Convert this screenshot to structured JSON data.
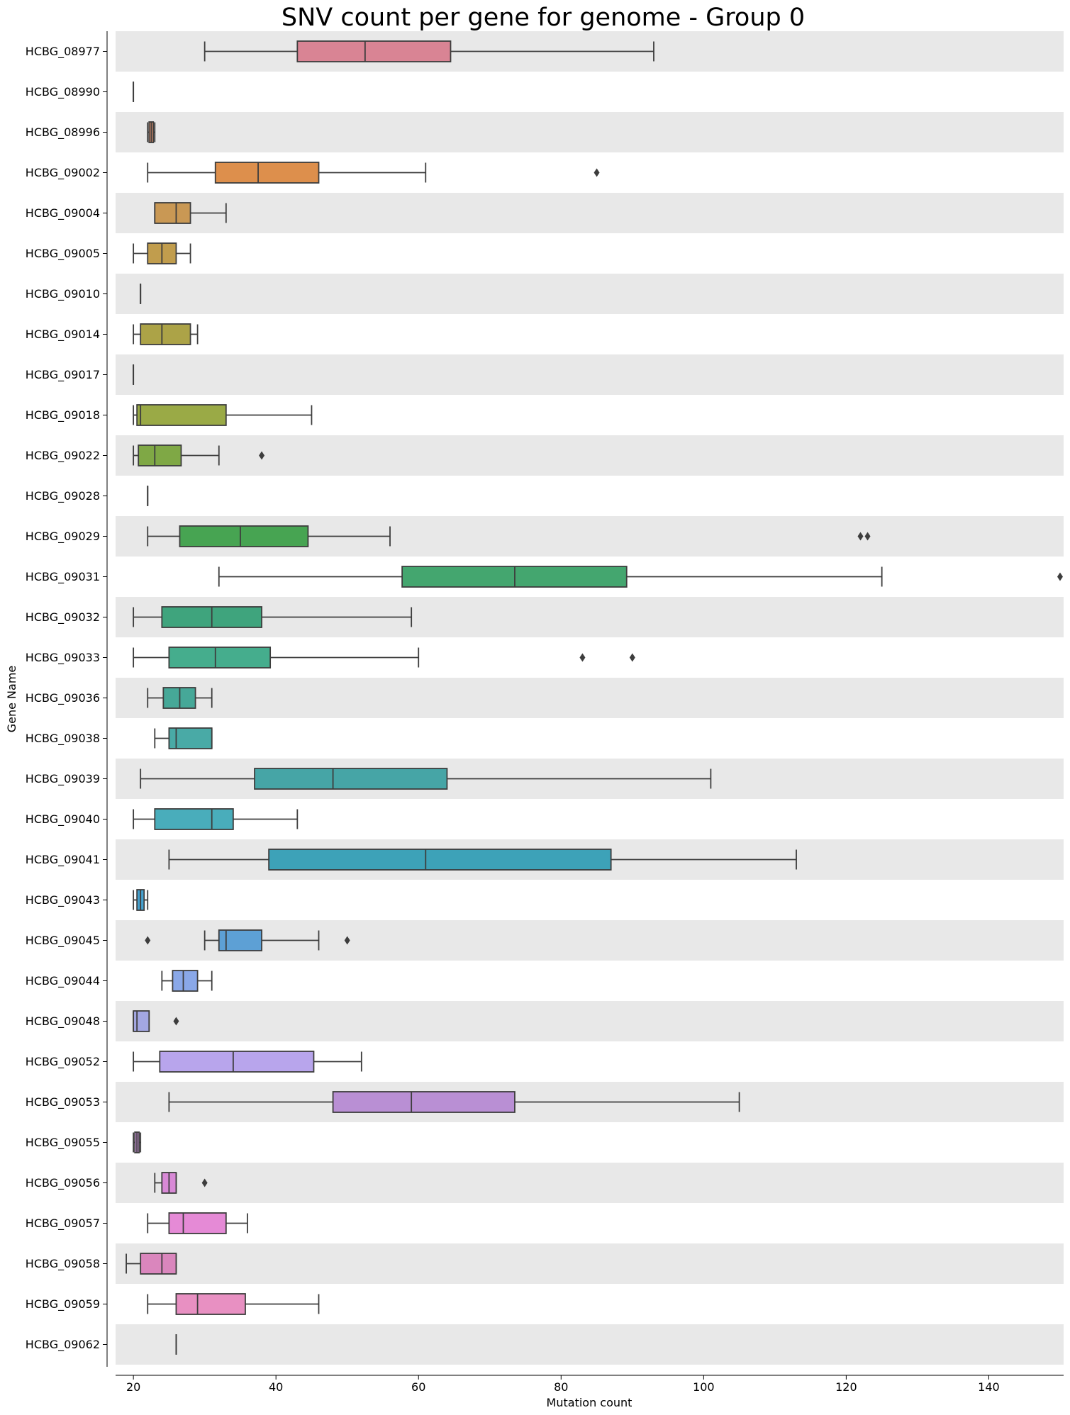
{
  "chart_data": {
    "type": "box",
    "orientation": "horizontal",
    "title": "SNV count per gene for genome - Group 0",
    "xlabel": "Mutation count",
    "ylabel": "Gene Name",
    "xlim": [
      17.5,
      150.5
    ],
    "xticks": [
      20,
      40,
      60,
      80,
      100,
      120,
      140
    ],
    "grid": false,
    "band_color": "#e8e8e8",
    "categories": [
      {
        "name": "HCBG_08977",
        "whisker_low": 30,
        "q1": 43,
        "median": 52.5,
        "q3": 64.5,
        "whisker_high": 93,
        "outliers": [],
        "color": "#d98494"
      },
      {
        "name": "HCBG_08990",
        "whisker_low": 20,
        "q1": 20,
        "median": 20,
        "q3": 20,
        "whisker_high": 20,
        "outliers": [],
        "color": "#da8a7e"
      },
      {
        "name": "HCBG_08996",
        "whisker_low": 22,
        "q1": 22.2,
        "median": 22.5,
        "q3": 22.8,
        "whisker_high": 23,
        "outliers": [],
        "color": "#db8e6b"
      },
      {
        "name": "HCBG_09002",
        "whisker_low": 22,
        "q1": 31.5,
        "median": 37.5,
        "q3": 46,
        "whisker_high": 61,
        "outliers": [
          85
        ],
        "color": "#dd8f4c"
      },
      {
        "name": "HCBG_09004",
        "whisker_low": 23,
        "q1": 23,
        "median": 26,
        "q3": 28,
        "whisker_high": 33,
        "outliers": [],
        "color": "#c99854"
      },
      {
        "name": "HCBG_09005",
        "whisker_low": 20,
        "q1": 22,
        "median": 24,
        "q3": 26,
        "whisker_high": 28,
        "outliers": [],
        "color": "#c19d4d"
      },
      {
        "name": "HCBG_09010",
        "whisker_low": 21,
        "q1": 21,
        "median": 21,
        "q3": 21,
        "whisker_high": 21,
        "outliers": [],
        "color": "#b8a24a"
      },
      {
        "name": "HCBG_09014",
        "whisker_low": 20,
        "q1": 21,
        "median": 24,
        "q3": 28,
        "whisker_high": 29,
        "outliers": [],
        "color": "#aca347"
      },
      {
        "name": "HCBG_09017",
        "whisker_low": 20,
        "q1": 20,
        "median": 20,
        "q3": 20,
        "whisker_high": 20,
        "outliers": [],
        "color": "#a2a644"
      },
      {
        "name": "HCBG_09018",
        "whisker_low": 20,
        "q1": 20.5,
        "median": 21,
        "q3": 33,
        "whisker_high": 45,
        "outliers": [],
        "color": "#9aaa46"
      },
      {
        "name": "HCBG_09022",
        "whisker_low": 20,
        "q1": 20.7,
        "median": 23,
        "q3": 26.7,
        "whisker_high": 32,
        "outliers": [
          38
        ],
        "color": "#7fa845"
      },
      {
        "name": "HCBG_09028",
        "whisker_low": 22,
        "q1": 22,
        "median": 22,
        "q3": 22,
        "whisker_high": 22,
        "outliers": [],
        "color": "#5fa548"
      },
      {
        "name": "HCBG_09029",
        "whisker_low": 22,
        "q1": 26.5,
        "median": 35,
        "q3": 44.5,
        "whisker_high": 56,
        "outliers": [
          122,
          123
        ],
        "color": "#47a452"
      },
      {
        "name": "HCBG_09031",
        "whisker_low": 32,
        "q1": 57.7,
        "median": 73.5,
        "q3": 89.2,
        "whisker_high": 125,
        "outliers": [
          150
        ],
        "color": "#44a66f"
      },
      {
        "name": "HCBG_09032",
        "whisker_low": 20,
        "q1": 24,
        "median": 31,
        "q3": 38,
        "whisker_high": 59,
        "outliers": [],
        "color": "#3fa47d"
      },
      {
        "name": "HCBG_09033",
        "whisker_low": 20,
        "q1": 25,
        "median": 31.5,
        "q3": 39.2,
        "whisker_high": 60,
        "outliers": [
          83,
          90
        ],
        "color": "#45ad8d"
      },
      {
        "name": "HCBG_09036",
        "whisker_low": 22,
        "q1": 24.2,
        "median": 26.5,
        "q3": 28.7,
        "whisker_high": 31,
        "outliers": [],
        "color": "#46a898"
      },
      {
        "name": "HCBG_09038",
        "whisker_low": 23,
        "q1": 25,
        "median": 26,
        "q3": 31,
        "whisker_high": 31,
        "outliers": [],
        "color": "#49aaa6"
      },
      {
        "name": "HCBG_09039",
        "whisker_low": 21,
        "q1": 37,
        "median": 48,
        "q3": 64,
        "whisker_high": 101,
        "outliers": [],
        "color": "#46a5a6"
      },
      {
        "name": "HCBG_09040",
        "whisker_low": 20,
        "q1": 23,
        "median": 31,
        "q3": 34,
        "whisker_high": 43,
        "outliers": [],
        "color": "#49adbb"
      },
      {
        "name": "HCBG_09041",
        "whisker_low": 25,
        "q1": 39,
        "median": 61,
        "q3": 87,
        "whisker_high": 113,
        "outliers": [],
        "color": "#3da2b8"
      },
      {
        "name": "HCBG_09043",
        "whisker_low": 20,
        "q1": 20.5,
        "median": 21,
        "q3": 21.5,
        "whisker_high": 22,
        "outliers": [],
        "color": "#45a1cf"
      },
      {
        "name": "HCBG_09045",
        "whisker_low": 30,
        "q1": 32,
        "median": 33,
        "q3": 38,
        "whisker_high": 46,
        "outliers": [
          22,
          50
        ],
        "color": "#5da0d5"
      },
      {
        "name": "HCBG_09044",
        "whisker_low": 24,
        "q1": 25.5,
        "median": 27,
        "q3": 29,
        "whisker_high": 31,
        "outliers": [],
        "color": "#8aa8e8"
      },
      {
        "name": "HCBG_09048",
        "whisker_low": 20,
        "q1": 20,
        "median": 20.5,
        "q3": 22.2,
        "whisker_high": 22.2,
        "outliers": [
          26
        ],
        "color": "#a3a7e2"
      },
      {
        "name": "HCBG_09052",
        "whisker_low": 20,
        "q1": 23.7,
        "median": 34,
        "q3": 45.3,
        "whisker_high": 52,
        "outliers": [],
        "color": "#b8a5ec"
      },
      {
        "name": "HCBG_09053",
        "whisker_low": 25,
        "q1": 48,
        "median": 59,
        "q3": 73.5,
        "whisker_high": 105,
        "outliers": [],
        "color": "#b98fd4"
      },
      {
        "name": "HCBG_09055",
        "whisker_low": 20,
        "q1": 20.2,
        "median": 20.5,
        "q3": 20.8,
        "whisker_high": 21,
        "outliers": [],
        "color": "#c890d8"
      },
      {
        "name": "HCBG_09056",
        "whisker_low": 23,
        "q1": 24,
        "median": 25,
        "q3": 26,
        "whisker_high": 26,
        "outliers": [
          30
        ],
        "color": "#d889d6"
      },
      {
        "name": "HCBG_09057",
        "whisker_low": 22,
        "q1": 25,
        "median": 27,
        "q3": 33,
        "whisker_high": 36,
        "outliers": [],
        "color": "#e58ad6"
      },
      {
        "name": "HCBG_09058",
        "whisker_low": 19,
        "q1": 21,
        "median": 24,
        "q3": 26,
        "whisker_high": 26,
        "outliers": [],
        "color": "#da86bd"
      },
      {
        "name": "HCBG_09059",
        "whisker_low": 22,
        "q1": 26,
        "median": 29,
        "q3": 35.7,
        "whisker_high": 46,
        "outliers": [],
        "color": "#e890c2"
      },
      {
        "name": "HCBG_09062",
        "whisker_low": 26,
        "q1": 26,
        "median": 26,
        "q3": 26,
        "whisker_high": 26,
        "outliers": [],
        "color": "#e088b0"
      }
    ]
  }
}
